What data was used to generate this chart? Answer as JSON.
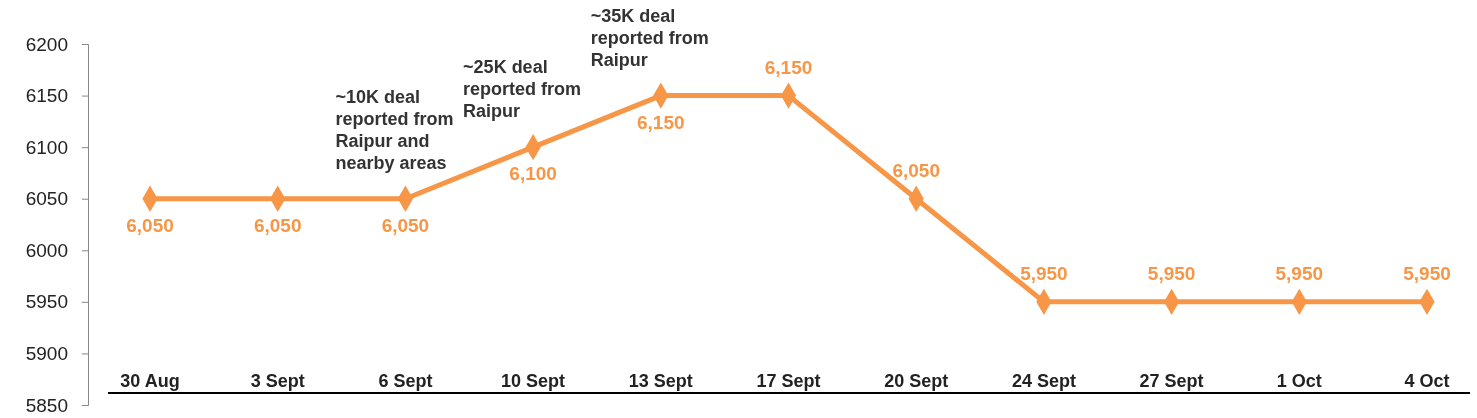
{
  "chart_data": {
    "type": "line",
    "categories": [
      "30 Aug",
      "3 Sept",
      "6 Sept",
      "10 Sept",
      "13 Sept",
      "17 Sept",
      "20 Sept",
      "24 Sept",
      "27 Sept",
      "1 Oct",
      "4 Oct"
    ],
    "series": [
      {
        "color": "#f79646",
        "values": [
          6050,
          6050,
          6050,
          6100,
          6150,
          6150,
          6050,
          5950,
          5950,
          5950,
          5950
        ],
        "value_labels": [
          "6,050",
          "6,050",
          "6,050",
          "6,100",
          "6,150",
          "6,150",
          "6,050",
          "5,950",
          "5,950",
          "5,950",
          "5,950"
        ]
      }
    ],
    "ylim": [
      5850,
      6200
    ],
    "yticks": [
      5850,
      5900,
      5950,
      6000,
      6050,
      6100,
      6150,
      6200
    ],
    "marker": "diamond",
    "annotations": [
      {
        "text": "~10K deal reported from Raipur and nearby areas",
        "x": "6 Sept",
        "y": 6050
      },
      {
        "text": "~25K deal reported from Raipur",
        "x": "10 Sept",
        "y": 6100
      },
      {
        "text": "~35K deal reported from Raipur",
        "x": "13 Sept",
        "y": 6150
      }
    ]
  }
}
